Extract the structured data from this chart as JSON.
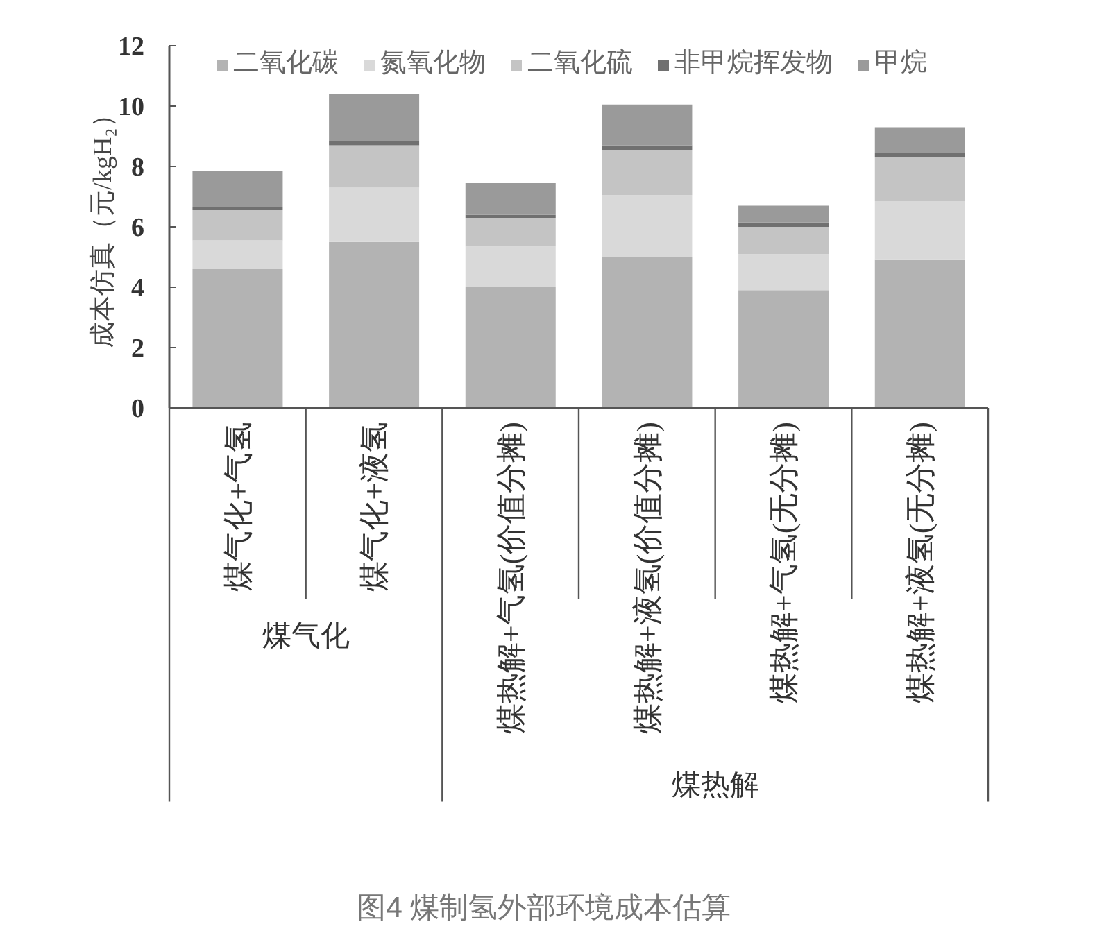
{
  "chart_data": {
    "type": "bar",
    "title": "图4 煤制氢外部环境成本估算",
    "ylabel": "成本仿真（元/kgH₂）",
    "categories": [
      "煤气化+气氢",
      "煤气化+液氢",
      "煤热解+气氢(价值分摊)",
      "煤热解+液氢(价值分摊)",
      "煤热解+气氢(无分摊)",
      "煤热解+液氢(无分摊)"
    ],
    "series": [
      {
        "name": "二氧化碳",
        "color": "#b3b3b3",
        "values": [
          4.6,
          5.5,
          4.0,
          5.0,
          3.9,
          4.9
        ]
      },
      {
        "name": "氮氧化物",
        "color": "#d9d9d9",
        "values": [
          0.95,
          1.8,
          1.35,
          2.05,
          1.2,
          1.95
        ]
      },
      {
        "name": "二氧化硫",
        "color": "#c4c4c4",
        "values": [
          1.0,
          1.4,
          0.95,
          1.5,
          0.9,
          1.45
        ]
      },
      {
        "name": "非甲烷挥发物",
        "color": "#707070",
        "values": [
          0.1,
          0.15,
          0.1,
          0.15,
          0.15,
          0.15
        ]
      },
      {
        "name": "甲烷",
        "color": "#9a9a9a",
        "values": [
          1.2,
          1.55,
          1.05,
          1.35,
          0.55,
          0.85
        ]
      }
    ],
    "stacked": true,
    "ylim": [
      0,
      12
    ],
    "yticks": [
      0,
      2,
      4,
      6,
      8,
      10,
      12
    ],
    "legend": "top",
    "annotations": [
      "煤气化",
      "煤热解"
    ]
  }
}
